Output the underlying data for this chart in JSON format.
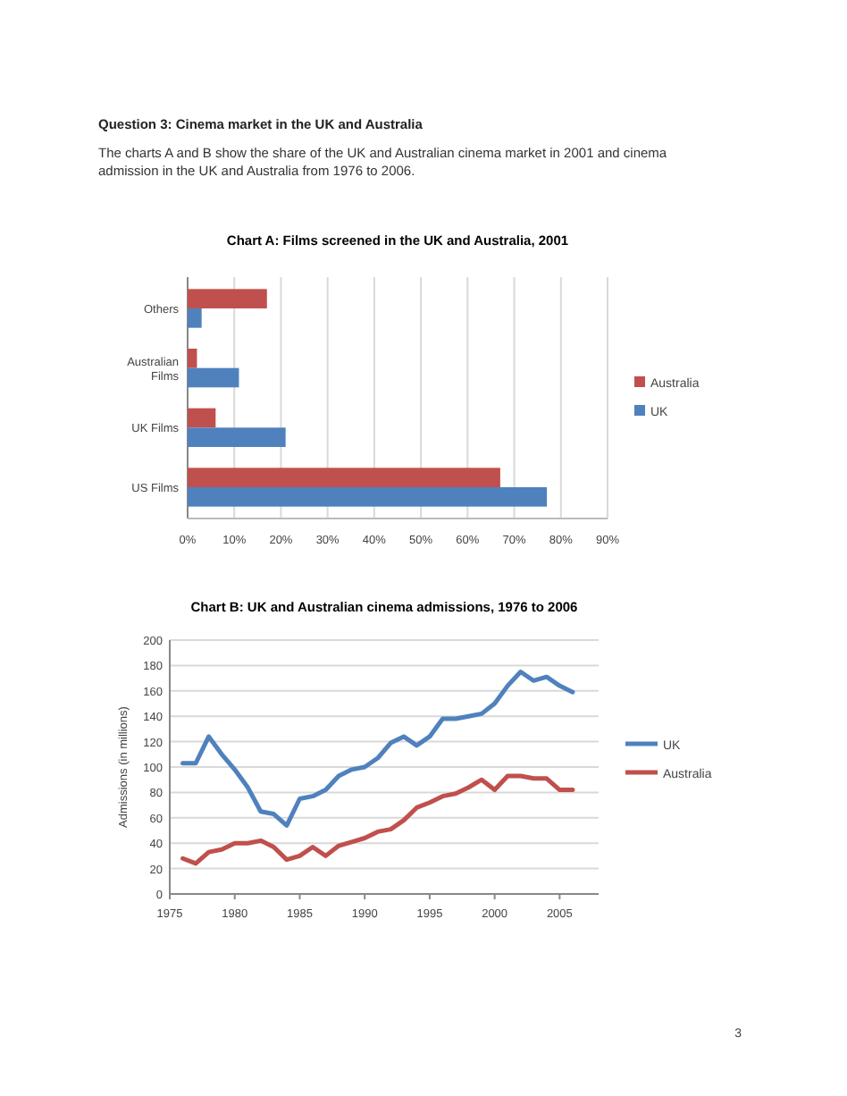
{
  "chart_data": [
    {
      "type": "bar",
      "orientation": "horizontal",
      "title": "Chart A: Films screened in the UK and Australia, 2001",
      "annotations": [
        "Question 3: Cinema market in the UK and Australia",
        "The charts A and B show the share of the UK and Australian cinema market in 2001 and cinema admission in the UK and Australia from 1976 to 2006."
      ],
      "categories": [
        "Others",
        "Australian Films",
        "UK Films",
        "US Films"
      ],
      "series": [
        {
          "name": "Australia",
          "color": "#c0504d",
          "values": [
            17,
            2,
            6,
            67
          ]
        },
        {
          "name": "UK",
          "color": "#4f81bd",
          "values": [
            3,
            11,
            21,
            77
          ]
        }
      ],
      "xlim": [
        0,
        90
      ],
      "xticks": [
        {
          "value": 0,
          "label": "0%"
        },
        {
          "value": 10,
          "label": "10%"
        },
        {
          "value": 20,
          "label": "20%"
        },
        {
          "value": 30,
          "label": "30%"
        },
        {
          "value": 40,
          "label": "40%"
        },
        {
          "value": 50,
          "label": "50%"
        },
        {
          "value": 60,
          "label": "60%"
        },
        {
          "value": 70,
          "label": "70%"
        },
        {
          "value": 80,
          "label": "80%"
        },
        {
          "value": 90,
          "label": "90%"
        }
      ],
      "grid": "x",
      "legend": "right"
    },
    {
      "type": "line",
      "title": "Chart B: UK and Australian cinema admissions, 1976 to 2006",
      "ylabel": "Admissions (in millions)",
      "x": [
        1976,
        1977,
        1978,
        1979,
        1980,
        1981,
        1982,
        1983,
        1984,
        1985,
        1986,
        1987,
        1988,
        1989,
        1990,
        1991,
        1992,
        1993,
        1994,
        1995,
        1996,
        1997,
        1998,
        1999,
        2000,
        2001,
        2002,
        2003,
        2004,
        2005,
        2006
      ],
      "series": [
        {
          "name": "UK",
          "color": "#4f81bd",
          "values": [
            103,
            103,
            124,
            110,
            98,
            84,
            65,
            63,
            54,
            75,
            77,
            82,
            93,
            98,
            100,
            107,
            119,
            124,
            117,
            124,
            138,
            138,
            140,
            142,
            150,
            164,
            175,
            168,
            171,
            164,
            159
          ]
        },
        {
          "name": "Australia",
          "color": "#c0504d",
          "values": [
            28,
            24,
            33,
            35,
            40,
            40,
            42,
            37,
            27,
            30,
            37,
            30,
            38,
            41,
            44,
            49,
            51,
            58,
            68,
            72,
            77,
            79,
            84,
            90,
            82,
            93,
            93,
            91,
            91,
            82,
            82
          ]
        }
      ],
      "xlim": [
        1975,
        2008
      ],
      "xticks": [
        1975,
        1980,
        1985,
        1990,
        1995,
        2000,
        2005
      ],
      "ylim": [
        0,
        200
      ],
      "yticks": [
        0,
        20,
        40,
        60,
        80,
        100,
        120,
        140,
        160,
        180,
        200
      ],
      "grid": "y",
      "legend": "right",
      "marker": "none",
      "line_style": "solid",
      "annotations": [
        "3"
      ]
    }
  ]
}
